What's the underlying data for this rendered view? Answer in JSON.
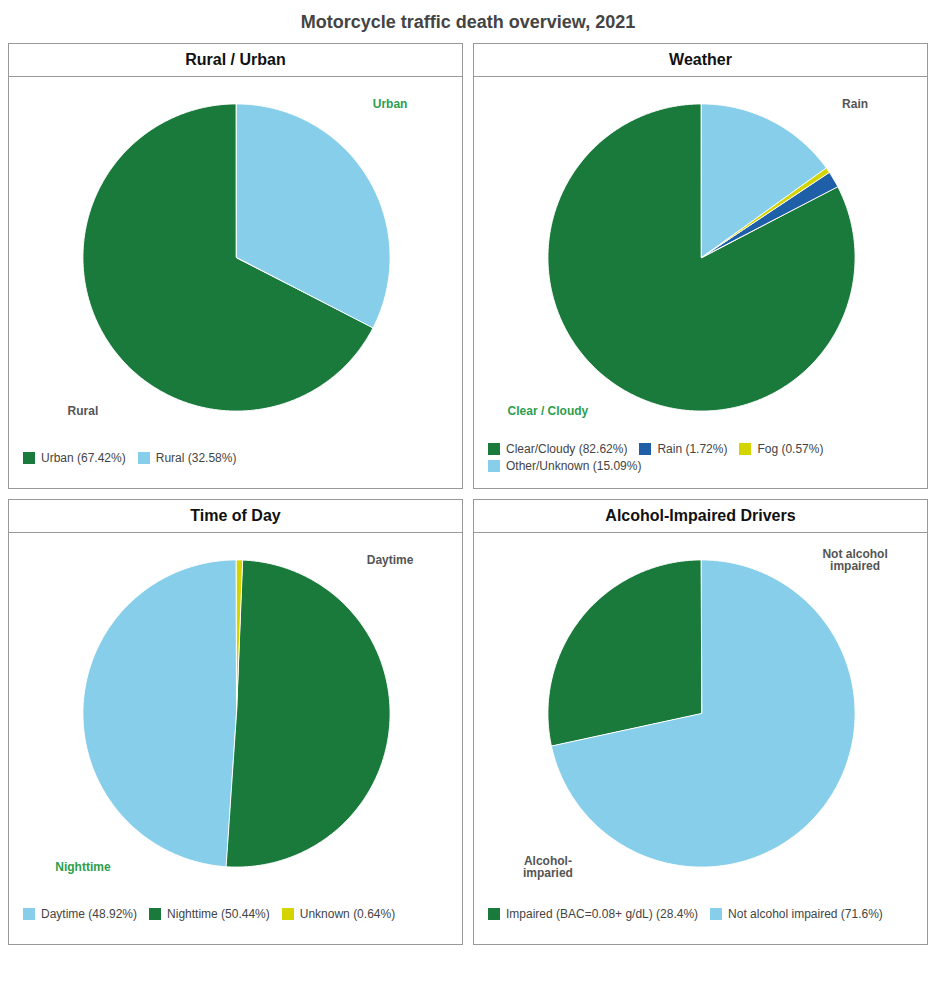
{
  "title": "Motorcycle traffic death overview, 2021",
  "chart_data": [
    {
      "type": "pie",
      "title": "Rural / Urban",
      "categories": [
        "Urban (67.42%)",
        "Rural (32.58%)"
      ],
      "values": [
        67.42,
        32.58
      ],
      "colors": [
        "#1a7a3c",
        "#87ceeb"
      ],
      "legend": "bottom",
      "annotations": [
        {
          "text": "Urban",
          "color": "#2d9e4e"
        },
        {
          "text": "Rural",
          "color": "#555555"
        }
      ]
    },
    {
      "type": "pie",
      "title": "Weather",
      "categories": [
        "Clear/Cloudy (82.62%)",
        "Rain (1.72%)",
        "Fog (0.57%)",
        "Other/Unknown (15.09%)"
      ],
      "values": [
        82.62,
        1.72,
        0.57,
        15.09
      ],
      "colors": [
        "#1a7a3c",
        "#1e5fa8",
        "#d4d400",
        "#87ceeb"
      ],
      "legend": "bottom",
      "annotations": [
        {
          "text": "Rain",
          "color": "#555555"
        },
        {
          "text": "Clear / Cloudy",
          "color": "#2d9e4e"
        }
      ]
    },
    {
      "type": "pie",
      "title": "Time of Day",
      "categories": [
        "Daytime (48.92%)",
        "Nighttime (50.44%)",
        "Unknown (0.64%)"
      ],
      "values": [
        48.92,
        50.44,
        0.64
      ],
      "colors": [
        "#87ceeb",
        "#1a7a3c",
        "#d4d400"
      ],
      "legend": "bottom",
      "annotations": [
        {
          "text": "Daytime",
          "color": "#555555"
        },
        {
          "text": "Nighttime",
          "color": "#2d9e4e"
        }
      ]
    },
    {
      "type": "pie",
      "title": "Alcohol-Impaired Drivers",
      "categories": [
        "Impaired (BAC=0.08+ g/dL) (28.4%)",
        "Not alcohol impaired (71.6%)"
      ],
      "values": [
        28.4,
        71.6
      ],
      "colors": [
        "#1a7a3c",
        "#87ceeb"
      ],
      "legend": "bottom",
      "annotations": [
        {
          "text": "Not alcohol\nimpaired",
          "color": "#555555"
        },
        {
          "text": "Alcohol-\nimparied",
          "color": "#555555"
        }
      ]
    }
  ]
}
